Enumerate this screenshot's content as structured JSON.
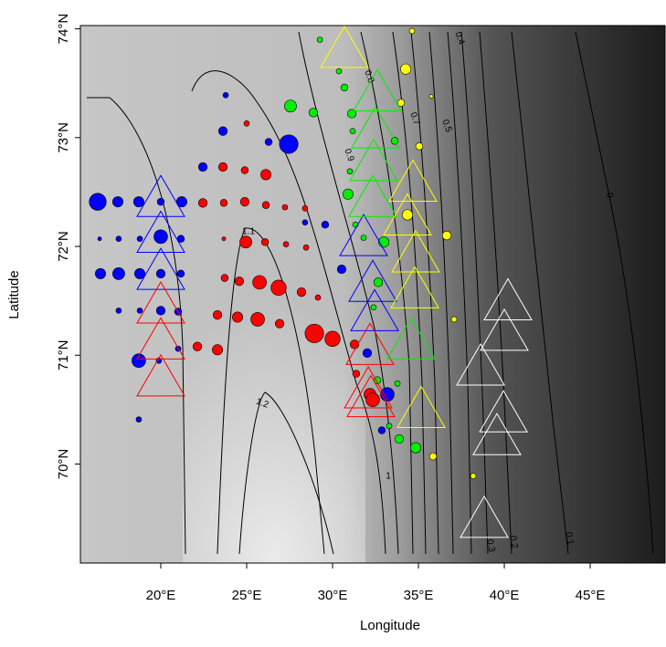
{
  "chart_data": {
    "type": "scatter",
    "xlabel": "Longitude",
    "ylabel": "Latitude",
    "xlim": [
      15.32,
      49.36
    ],
    "ylim": [
      69.09,
      74.03
    ],
    "xticks": [
      {
        "value": 20,
        "label": "20°E"
      },
      {
        "value": 25,
        "label": "25°E"
      },
      {
        "value": 30,
        "label": "30°E"
      },
      {
        "value": 35,
        "label": "35°E"
      },
      {
        "value": 40,
        "label": "40°E"
      },
      {
        "value": 45,
        "label": "45°E"
      }
    ],
    "yticks": [
      {
        "value": 70,
        "label": "70°N"
      },
      {
        "value": 71,
        "label": "71°N"
      },
      {
        "value": 72,
        "label": "72°N"
      },
      {
        "value": 73,
        "label": "73°N"
      },
      {
        "value": 74,
        "label": "74°N"
      }
    ],
    "contour_labels": [
      "1.2",
      "1.1",
      "1",
      "0.9",
      "0.8",
      "0.7",
      "0.5",
      "0.4",
      "0.3",
      "0.2",
      "0.1",
      "0"
    ],
    "series": [
      {
        "marker": "circle",
        "color": "#ff0000",
        "x": [
          25.0,
          23.62,
          24.89,
          26.12,
          22.45,
          23.67,
          24.89,
          26.12,
          27.23,
          28.4,
          21.22,
          23.67,
          24.95,
          26.07,
          27.29,
          28.46,
          23.72,
          24.57,
          25.75,
          26.86,
          28.19,
          29.15,
          23.3,
          24.47,
          25.64,
          26.92,
          28.94,
          30.0,
          22.13,
          23.3,
          32.18,
          32.34,
          31.28,
          31.38
        ],
        "values": [
          73.13,
          72.73,
          72.7,
          72.66,
          72.4,
          72.4,
          72.41,
          72.38,
          72.36,
          72.35,
          72.4,
          72.07,
          72.04,
          72.04,
          72.02,
          71.99,
          71.71,
          71.68,
          71.67,
          71.62,
          71.58,
          71.53,
          71.37,
          71.35,
          71.33,
          71.29,
          71.2,
          71.15,
          71.08,
          71.05,
          70.64,
          70.59,
          71.1,
          70.83
        ],
        "sizes": [
          2,
          4,
          3,
          5,
          4,
          3,
          4,
          3,
          2,
          2,
          3,
          1,
          6,
          3,
          2,
          2,
          3,
          4,
          7,
          8,
          4,
          2,
          4,
          5,
          7,
          4,
          10,
          8,
          4,
          5,
          6,
          7,
          4,
          3
        ]
      },
      {
        "marker": "circle",
        "color": "#0000ff",
        "x": [
          16.33,
          17.5,
          18.72,
          20.0,
          21.22,
          16.44,
          17.55,
          18.78,
          20.0,
          21.17,
          16.49,
          17.55,
          18.78,
          20.0,
          21.17,
          17.55,
          18.78,
          20.0,
          21.01,
          18.72,
          19.89,
          21.01,
          23.78,
          23.62,
          26.28,
          27.45,
          22.45,
          28.4,
          29.57,
          30.53,
          32.02,
          33.19,
          32.87,
          18.72
        ],
        "values": [
          72.41,
          72.41,
          72.41,
          72.41,
          72.41,
          72.07,
          72.07,
          72.07,
          72.09,
          72.07,
          71.75,
          71.75,
          71.75,
          71.75,
          71.75,
          71.41,
          71.41,
          71.41,
          71.4,
          70.95,
          70.95,
          71.06,
          73.39,
          73.06,
          72.96,
          72.94,
          72.73,
          72.22,
          72.2,
          71.79,
          71.02,
          70.64,
          70.31,
          70.41
        ],
        "sizes": [
          9,
          5,
          5,
          3,
          5,
          1,
          2,
          2,
          7,
          3,
          5,
          6,
          5,
          4,
          3,
          2,
          2,
          4,
          3,
          7,
          2,
          2,
          2,
          4,
          3,
          10,
          4,
          2,
          3,
          4,
          4,
          7,
          3,
          2
        ]
      },
      {
        "marker": "circle",
        "color": "#00ee00",
        "x": [
          27.55,
          28.88,
          29.26,
          30.69,
          30.37,
          31.12,
          31.17,
          30.9,
          31.33,
          31.81,
          32.66,
          32.61,
          33.3,
          33.88,
          34.84,
          31.01,
          33.62,
          32.98,
          33.78,
          32.39
        ],
        "values": [
          73.29,
          73.23,
          73.9,
          73.46,
          73.61,
          73.22,
          73.06,
          72.48,
          72.2,
          72.08,
          71.67,
          70.77,
          70.35,
          70.23,
          70.15,
          72.69,
          72.97,
          72.04,
          70.74,
          71.44
        ],
        "sizes": [
          6,
          4,
          2,
          3,
          2,
          4,
          2,
          5,
          2,
          2,
          4,
          3,
          2,
          4,
          5,
          2,
          3,
          5,
          2,
          2
        ]
      },
      {
        "marker": "circle",
        "color": "#ffff00",
        "x": [
          34.26,
          34.63,
          33.99,
          35.05,
          36.65,
          35.75,
          37.08,
          35.85,
          38.19,
          34.36
        ],
        "values": [
          73.63,
          73.98,
          73.32,
          72.92,
          72.1,
          73.38,
          71.33,
          70.07,
          69.89,
          72.29
        ],
        "sizes": [
          5,
          2,
          3,
          3,
          4,
          1,
          2,
          3,
          2,
          5
        ]
      },
      {
        "marker": "triangle",
        "color": "#0000ff",
        "x": [
          20.0,
          20.0,
          20.0,
          31.81,
          32.34,
          32.45
        ],
        "values": [
          72.46,
          72.13,
          71.79,
          72.1,
          71.68,
          71.41
        ]
      },
      {
        "marker": "triangle",
        "color": "#ff0000",
        "x": [
          20.0,
          20.0,
          20.0,
          32.18,
          32.08,
          32.23
        ],
        "values": [
          71.48,
          71.15,
          70.81,
          71.1,
          70.7,
          70.62
        ]
      },
      {
        "marker": "triangle",
        "color": "#00ee00",
        "x": [
          32.61,
          32.5,
          32.39,
          32.34,
          34.57,
          34.79
        ],
        "values": [
          73.43,
          73.09,
          72.79,
          72.46,
          71.15,
          71.62
        ]
      },
      {
        "marker": "triangle",
        "color": "#ffff00",
        "x": [
          30.69,
          34.68,
          34.36,
          34.84,
          34.79,
          35.16
        ],
        "values": [
          73.83,
          72.6,
          72.29,
          71.95,
          71.62,
          70.52
        ]
      },
      {
        "marker": "triangle",
        "color": "#ffffff",
        "x": [
          40.21,
          40.0,
          38.62,
          39.95,
          39.57,
          38.83
        ],
        "values": [
          71.51,
          71.23,
          70.91,
          70.48,
          70.27,
          69.51
        ]
      }
    ]
  }
}
